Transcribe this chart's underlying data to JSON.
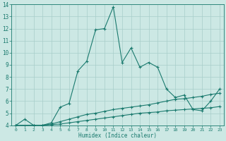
{
  "xlabel": "Humidex (Indice chaleur)",
  "xlim": [
    -0.5,
    23.5
  ],
  "ylim": [
    4,
    14
  ],
  "yticks": [
    4,
    5,
    6,
    7,
    8,
    9,
    10,
    11,
    12,
    13,
    14
  ],
  "xticks": [
    0,
    1,
    2,
    3,
    4,
    5,
    6,
    7,
    8,
    9,
    10,
    11,
    12,
    13,
    14,
    15,
    16,
    17,
    18,
    19,
    20,
    21,
    22,
    23
  ],
  "bg_color": "#cce8e4",
  "grid_color": "#a8cdc9",
  "line_color": "#1a7a6e",
  "line1_x": [
    0,
    1,
    2,
    3,
    4,
    5,
    6,
    7,
    8,
    9,
    10,
    11,
    12,
    13,
    14,
    15,
    16,
    17,
    18,
    19,
    20,
    21,
    22,
    23
  ],
  "line1_y": [
    4.0,
    4.5,
    4.0,
    4.0,
    4.2,
    5.5,
    5.8,
    8.5,
    9.3,
    11.9,
    12.0,
    13.8,
    9.2,
    10.4,
    8.8,
    9.2,
    8.8,
    7.0,
    6.3,
    6.5,
    5.3,
    5.2,
    6.0,
    7.0
  ],
  "line2_x": [
    0,
    2,
    3,
    4,
    5,
    6,
    7,
    8,
    9,
    10,
    11,
    12,
    13,
    14,
    15,
    16,
    17,
    18,
    19,
    20,
    21,
    22,
    23
  ],
  "line2_y": [
    4.0,
    4.0,
    4.0,
    4.1,
    4.3,
    4.5,
    4.7,
    4.9,
    5.0,
    5.15,
    5.3,
    5.4,
    5.5,
    5.6,
    5.7,
    5.85,
    6.0,
    6.15,
    6.2,
    6.3,
    6.4,
    6.55,
    6.65
  ],
  "line3_x": [
    0,
    2,
    3,
    4,
    5,
    6,
    7,
    8,
    9,
    10,
    11,
    12,
    13,
    14,
    15,
    16,
    17,
    18,
    19,
    20,
    21,
    22,
    23
  ],
  "line3_y": [
    4.0,
    4.0,
    4.0,
    4.05,
    4.1,
    4.2,
    4.3,
    4.4,
    4.5,
    4.6,
    4.7,
    4.8,
    4.9,
    5.0,
    5.05,
    5.1,
    5.2,
    5.25,
    5.3,
    5.35,
    5.4,
    5.45,
    5.55
  ]
}
